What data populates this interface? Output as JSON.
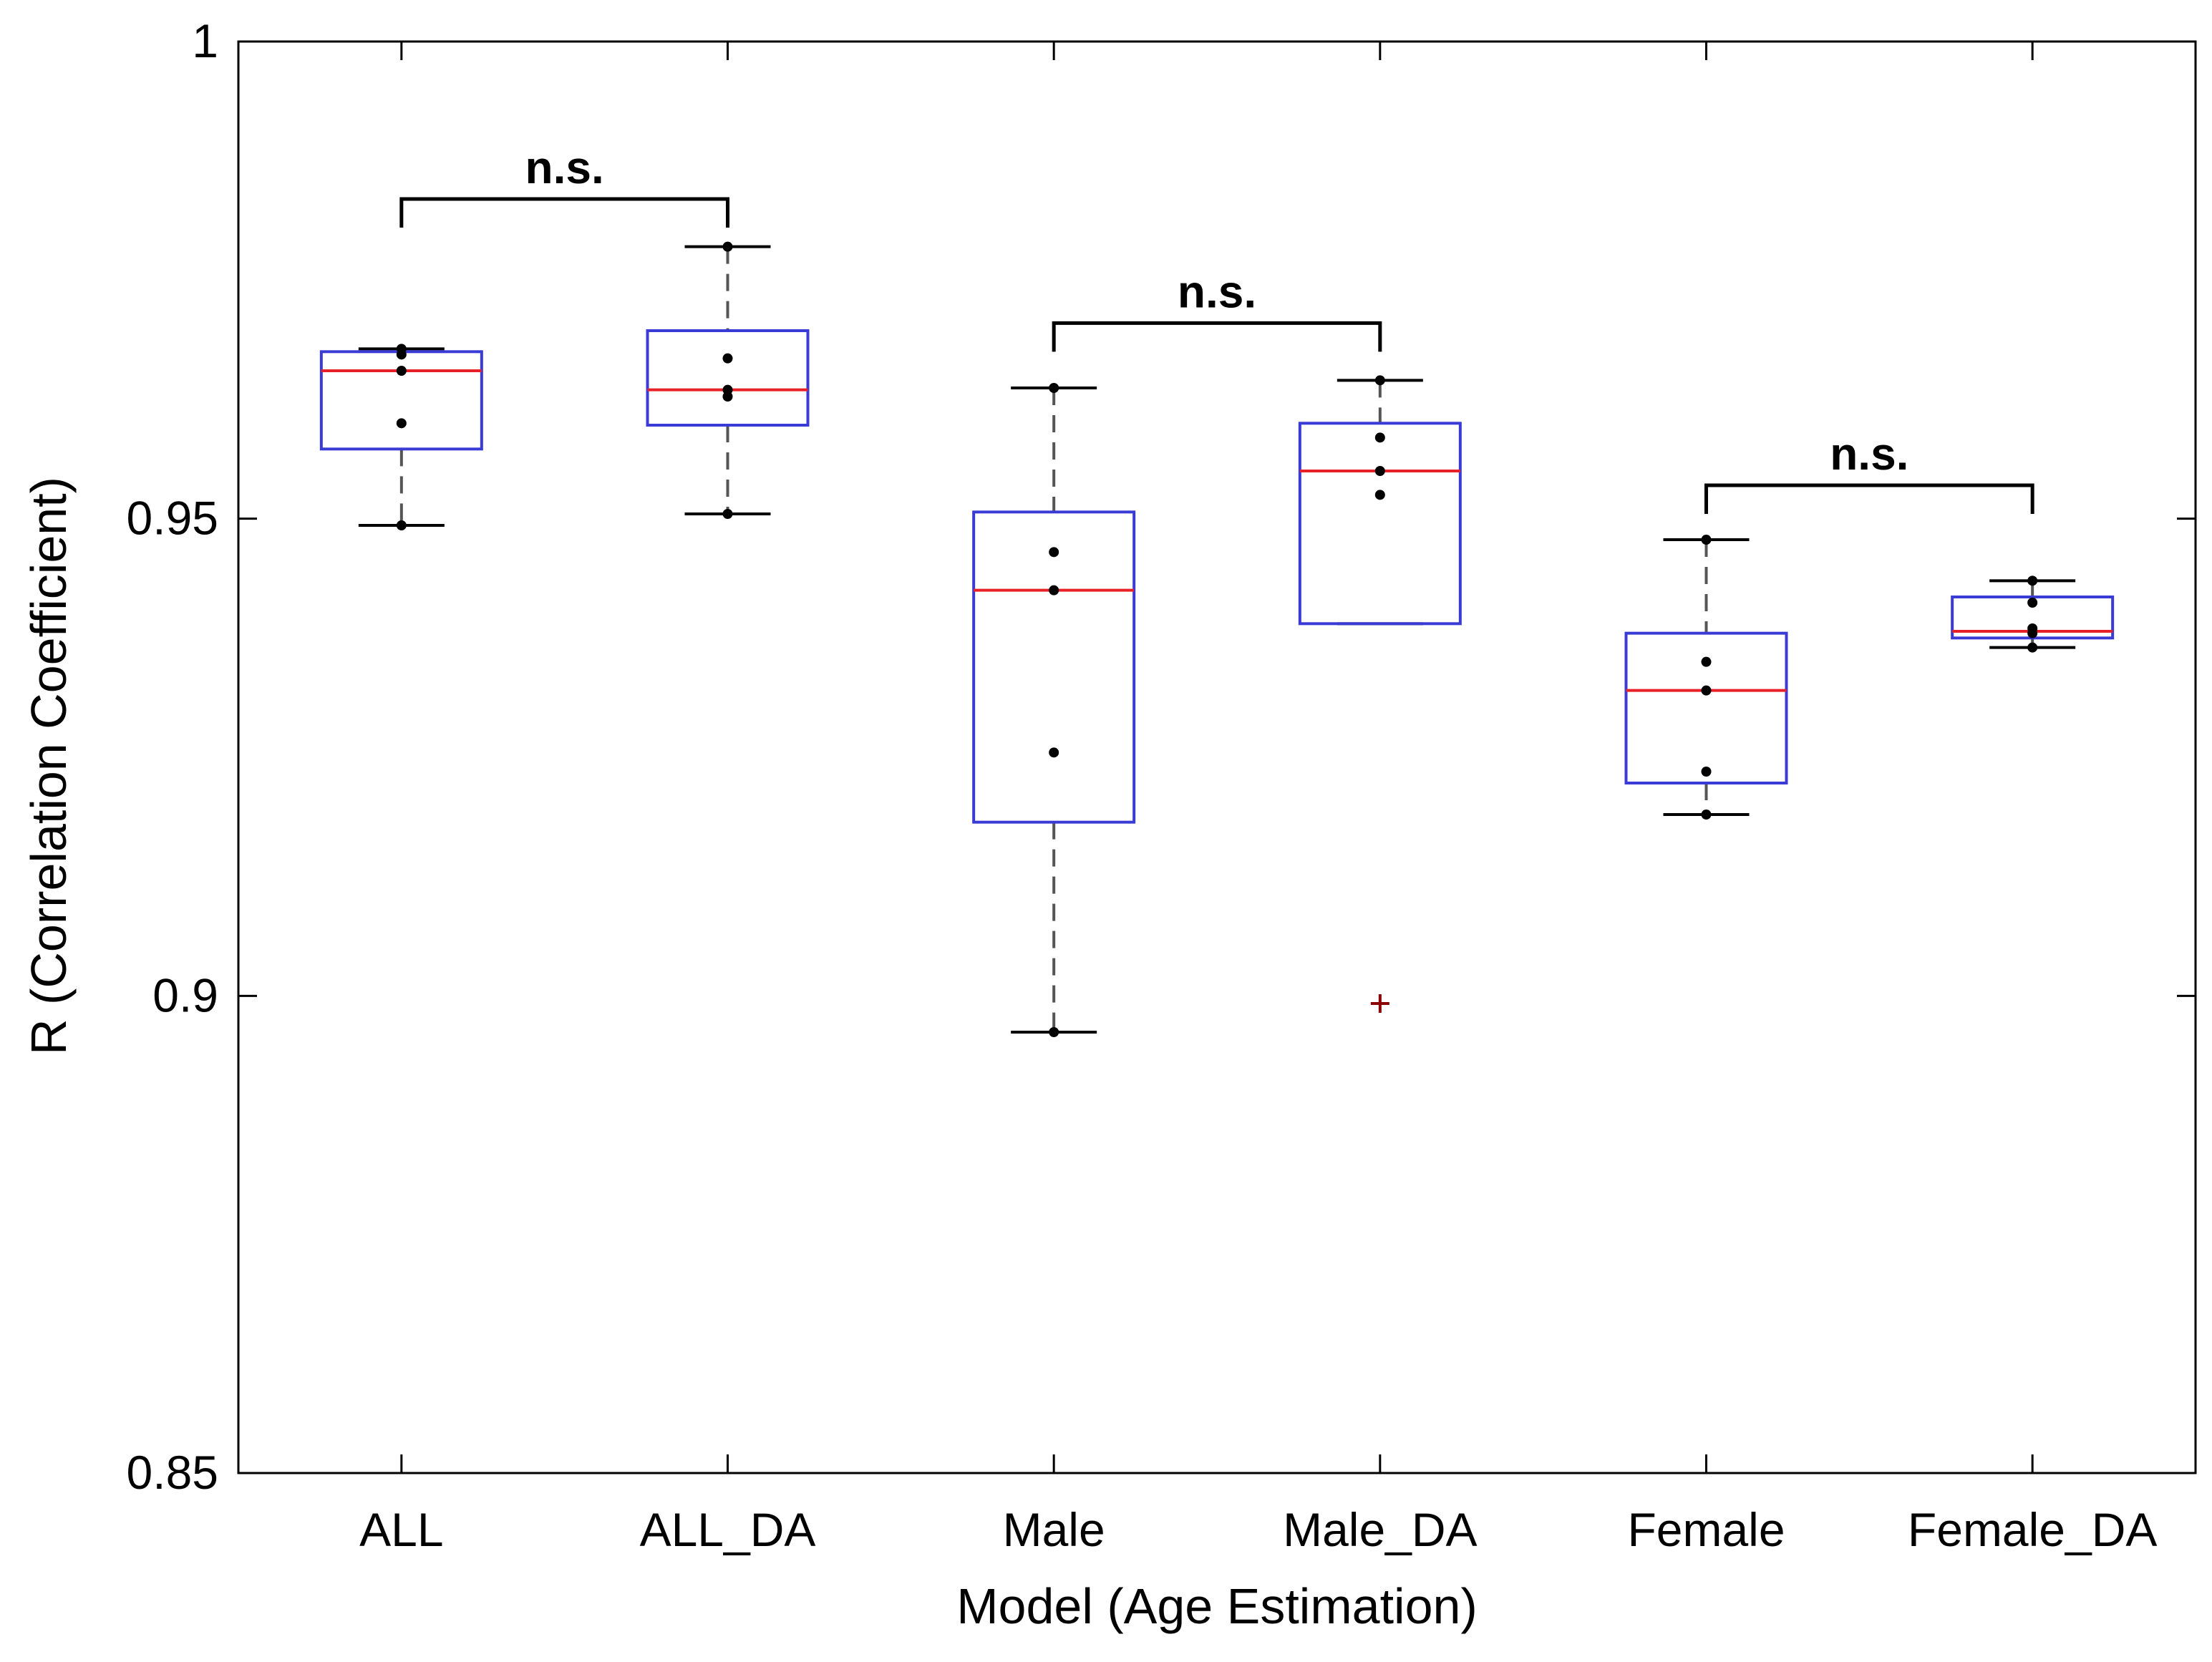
{
  "chart_data": {
    "type": "box",
    "title": "",
    "xlabel": "Model (Age Estimation)",
    "ylabel": "R (Correlation Coefficient)",
    "ylim": [
      0.85,
      1.0
    ],
    "yticks": [
      0.85,
      0.9,
      0.95,
      1.0
    ],
    "ytick_labels": [
      "0.85",
      "0.9",
      "0.95",
      "1"
    ],
    "categories": [
      "ALL",
      "ALL_DA",
      "Male",
      "Male_DA",
      "Female",
      "Female_DA"
    ],
    "boxes": [
      {
        "category": "ALL",
        "whisker_low": 0.9493,
        "q1": 0.9573,
        "median": 0.9655,
        "q3": 0.9675,
        "whisker_high": 0.9678,
        "points": [
          0.9493,
          0.96,
          0.9655,
          0.9672,
          0.9678
        ],
        "outliers": []
      },
      {
        "category": "ALL_DA",
        "whisker_low": 0.9505,
        "q1": 0.9598,
        "median": 0.9635,
        "q3": 0.9697,
        "whisker_high": 0.9785,
        "points": [
          0.9505,
          0.9628,
          0.9635,
          0.9668,
          0.9785
        ],
        "outliers": []
      },
      {
        "category": "Male",
        "whisker_low": 0.8962,
        "q1": 0.9182,
        "median": 0.9425,
        "q3": 0.9507,
        "whisker_high": 0.9637,
        "points": [
          0.8962,
          0.9255,
          0.9425,
          0.9465,
          0.9637
        ],
        "outliers": []
      },
      {
        "category": "Male_DA",
        "whisker_low": 0.939,
        "q1": 0.939,
        "median": 0.955,
        "q3": 0.96,
        "whisker_high": 0.9645,
        "points": [
          0.9525,
          0.955,
          0.9585,
          0.9645
        ],
        "outliers": [
          0.8992
        ]
      },
      {
        "category": "Female",
        "whisker_low": 0.919,
        "q1": 0.9223,
        "median": 0.932,
        "q3": 0.938,
        "whisker_high": 0.9478,
        "points": [
          0.919,
          0.9235,
          0.932,
          0.935,
          0.9478
        ],
        "outliers": []
      },
      {
        "category": "Female_DA",
        "whisker_low": 0.9365,
        "q1": 0.9375,
        "median": 0.9382,
        "q3": 0.9418,
        "whisker_high": 0.9435,
        "points": [
          0.9365,
          0.938,
          0.9385,
          0.9412,
          0.9435
        ],
        "outliers": []
      }
    ],
    "significance": [
      {
        "from": "ALL",
        "to": "ALL_DA",
        "label": "n.s.",
        "y": 0.9835,
        "drop_to": 0.9805
      },
      {
        "from": "Male",
        "to": "Male_DA",
        "label": "n.s.",
        "y": 0.9705,
        "drop_to": 0.9675
      },
      {
        "from": "Female",
        "to": "Female_DA",
        "label": "n.s.",
        "y": 0.9535,
        "drop_to": 0.9505
      }
    ],
    "colors": {
      "box": "#3a3ad6",
      "median": "#e8202a",
      "whisker": "#555555",
      "cap": "#000000",
      "point": "#000000",
      "outlier": "#8b0000",
      "axis": "#000000"
    }
  }
}
